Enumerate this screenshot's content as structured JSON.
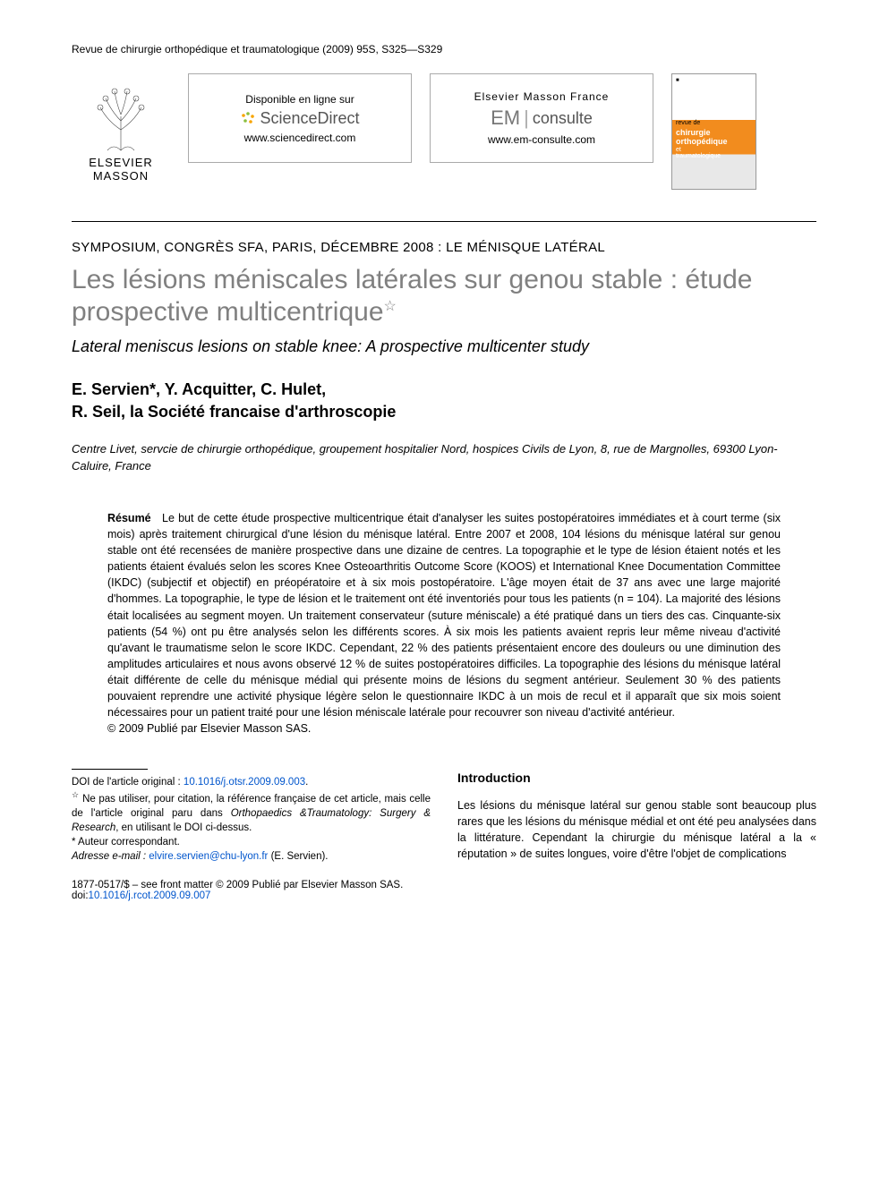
{
  "citation": "Revue de chirurgie orthopédique et traumatologique (2009) 95S, S325—S329",
  "publisher": {
    "name": "ELSEVIER MASSON"
  },
  "portal1": {
    "line1": "Disponible en ligne sur",
    "brand": "ScienceDirect",
    "url": "www.sciencedirect.com"
  },
  "portal2": {
    "line1": "Elsevier Masson France",
    "brand_pre": "EM",
    "brand_post": "consulte",
    "url": "www.em-consulte.com"
  },
  "journal_cover": {
    "top": "■",
    "line1": "chirurgie",
    "line2": "orthopédique",
    "line3": "et",
    "line4": "traumatologique"
  },
  "section_label": "SYMPOSIUM, CONGRÈS SFA, PARIS, DÉCEMBRE 2008 : LE MÉNISQUE LATÉRAL",
  "title": "Les lésions méniscales latérales sur genou stable : étude prospective multicentrique",
  "title_star": "☆",
  "subtitle": "Lateral meniscus lesions on stable knee: A prospective multicenter study",
  "authors_line1": "E. Servien*, Y. Acquitter, C. Hulet,",
  "authors_line2": "R. Seil, la Société francaise d'arthroscopie",
  "affiliation": "Centre Livet, servcie de chirurgie orthopédique, groupement hospitalier Nord, hospices Civils de Lyon, 8, rue de Margnolles, 69300 Lyon-Caluire, France",
  "abstract_lead": "Résumé",
  "abstract_body": "Le but de cette étude prospective multicentrique était d'analyser les suites postopératoires immédiates et à court terme (six mois) après traitement chirurgical d'une lésion du ménisque latéral. Entre 2007 et 2008, 104 lésions du ménisque latéral sur genou stable ont été recensées de manière prospective dans une dizaine de centres. La topographie et le type de lésion étaient notés et les patients étaient évalués selon les scores Knee Osteoarthritis Outcome Score (KOOS) et International Knee Documentation Committee (IKDC) (subjectif et objectif) en préopératoire et à six mois postopératoire. L'âge moyen était de 37 ans avec une large majorité d'hommes. La topographie, le type de lésion et le traitement ont été inventoriés pour tous les patients (n = 104). La majorité des lésions était localisées au segment moyen. Un traitement conservateur (suture méniscale) a été pratiqué dans un tiers des cas. Cinquante-six patients (54 %) ont pu être analysés selon les différents scores. À six mois les patients avaient repris leur même niveau d'activité qu'avant le traumatisme selon le score IKDC. Cependant, 22 % des patients présentaient encore des douleurs ou une diminution des amplitudes articulaires et nous avons observé 12 % de suites postopératoires difficiles. La topographie des lésions du ménisque latéral était différente de celle du ménisque médial qui présente moins de lésions du segment antérieur. Seulement 30 % des patients pouvaient reprendre une activité physique légère selon le questionnaire IKDC à un mois de recul et il apparaît que six mois soient nécessaires pour un patient traité pour une lésion méniscale latérale pour recouvrer son niveau d'activité antérieur.",
  "copyright": "© 2009 Publié par Elsevier Masson SAS.",
  "footnotes": {
    "doi_label": "DOI de l'article original : ",
    "doi_link": "10.1016/j.otsr.2009.09.003",
    "doi_after": ".",
    "star": "☆ Ne pas utiliser, pour citation, la référence française de cet article, mais celle de l'article original paru dans Orthopaedics &Traumatology: Surgery & Research, en utilisant le DOI ci-dessus.",
    "corr": "* Auteur correspondant.",
    "email_label": "Adresse e-mail : ",
    "email_link": "elvire.servien@chu-lyon.fr",
    "email_after": " (E. Servien)."
  },
  "intro": {
    "heading": "Introduction",
    "body": "Les lésions du ménisque latéral sur genou stable sont beaucoup plus rares que les lésions du ménisque médial et ont été peu analysées dans la littérature. Cependant la chirurgie du ménisque latéral a la « réputation » de suites longues, voire d'être l'objet de complications"
  },
  "footer": {
    "line1": "1877-0517/$ – see front matter © 2009 Publié par Elsevier Masson SAS.",
    "doi_label": "doi:",
    "doi_link": "10.1016/j.rcot.2009.09.007"
  }
}
